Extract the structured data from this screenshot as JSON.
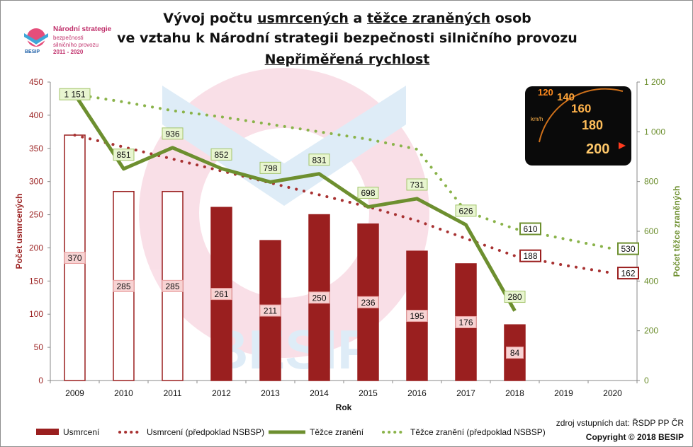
{
  "header": {
    "title_line1_a": "Vývoj počtu ",
    "title_line1_b": "usmrcených",
    "title_line1_c": " a ",
    "title_line1_d": "těžce zraněných",
    "title_line1_e": " osob",
    "title_line2": "ve vztahu k Národní strategii bezpečnosti silničního provozu",
    "title_line3": "Nepřiměřená rychlost"
  },
  "logo": {
    "line1": "Národní strategie",
    "line2": "bezpečnosti",
    "line3": "silničního provozu",
    "line4": "2011 - 2020",
    "brand": "BESIP"
  },
  "footer": {
    "source": "zdroj vstupních dat: ŘSDP PP ČR",
    "copyright": "Copyright © 2018  BESIP"
  },
  "watermark": {
    "text": "BESIP"
  },
  "colors": {
    "bar_fill": "#9a1f1f",
    "bar_border": "#9a1f1f",
    "line_green": "#6d8f2f",
    "dots_red": "#a83232",
    "dots_green": "#8ab34a",
    "label_red_bg": "#f7d3d3",
    "label_green_bg": "#e8f5d0"
  },
  "chart_data": {
    "type": "bar",
    "categories": [
      "2009",
      "2010",
      "2011",
      "2012",
      "2013",
      "2014",
      "2015",
      "2016",
      "2017",
      "2018",
      "2019",
      "2020"
    ],
    "xlabel": "Rok",
    "ylabel": "Počet usmrcených",
    "y2label": "Počet těžce zraněných",
    "ylim": [
      0,
      450
    ],
    "y2lim": [
      0,
      1200
    ],
    "yticks": [
      "0",
      "50",
      "100",
      "150",
      "200",
      "250",
      "300",
      "350",
      "400",
      "450"
    ],
    "y2ticks": [
      "0",
      "200",
      "400",
      "600",
      "800",
      "1 000",
      "1 200"
    ],
    "grid": false,
    "legend_position": "bottom",
    "series": [
      {
        "name": "Usmrcení",
        "kind": "bar",
        "axis": "left",
        "values": [
          370,
          285,
          285,
          261,
          211,
          250,
          236,
          195,
          176,
          84,
          null,
          null
        ],
        "labels": [
          "370",
          "285",
          "285",
          "261",
          "211",
          "250",
          "236",
          "195",
          "176",
          "84",
          "",
          ""
        ],
        "hollow": [
          true,
          true,
          true,
          false,
          false,
          false,
          false,
          false,
          false,
          false,
          false,
          false
        ]
      },
      {
        "name": "Usmrcení (předpoklad NSBSP)",
        "kind": "dotted-line",
        "axis": "left",
        "values": [
          370,
          352,
          334,
          316,
          298,
          280,
          262,
          241,
          214,
          188,
          174,
          162
        ],
        "end_labels": {
          "9": "188",
          "11": "162"
        }
      },
      {
        "name": "Těžce zranění",
        "kind": "line",
        "axis": "right",
        "values": [
          1151,
          851,
          936,
          852,
          798,
          831,
          698,
          731,
          626,
          280,
          null,
          null
        ],
        "labels": [
          "1 151",
          "851",
          "936",
          "852",
          "798",
          "831",
          "698",
          "731",
          "626",
          "280",
          "",
          ""
        ]
      },
      {
        "name": "Těžce zranění (předpoklad NSBSP)",
        "kind": "dotted-line",
        "axis": "right",
        "values": [
          1151,
          1120,
          1085,
          1060,
          1030,
          1000,
          970,
          930,
          680,
          610,
          570,
          530
        ],
        "end_labels": {
          "9": "610",
          "11": "530"
        }
      }
    ]
  }
}
